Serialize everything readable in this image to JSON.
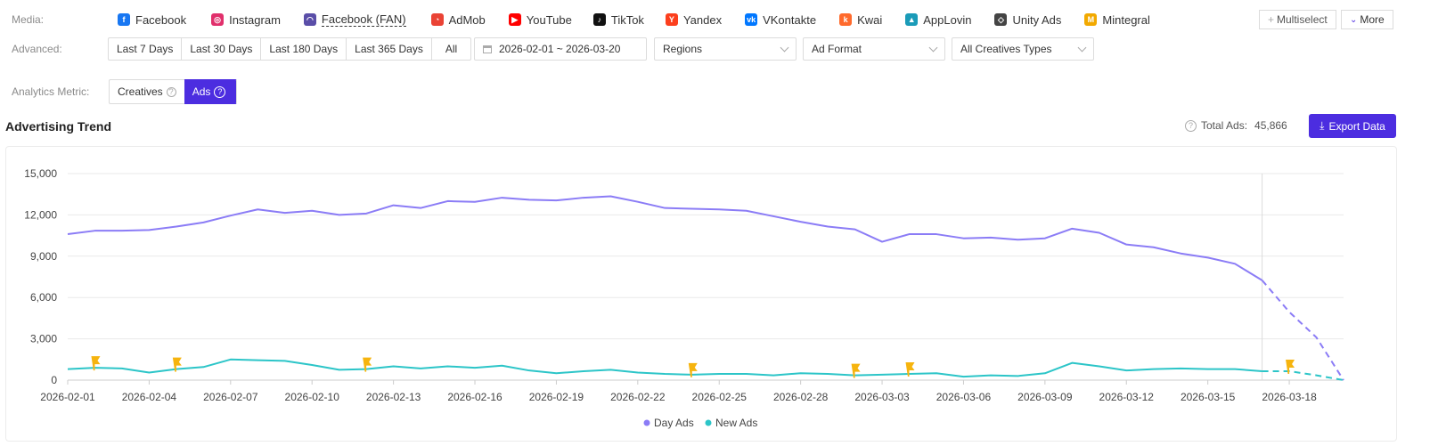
{
  "media": {
    "label": "Media:",
    "items": [
      {
        "name": "facebook",
        "label": "Facebook",
        "color": "#1877f2",
        "glyph": "f"
      },
      {
        "name": "instagram",
        "label": "Instagram",
        "color": "#e1306c",
        "glyph": "◎"
      },
      {
        "name": "facebook-fan",
        "label": "Facebook (FAN)",
        "color": "#5a4ea8",
        "glyph": "◠"
      },
      {
        "name": "admob",
        "label": "AdMob",
        "color": "#ea4335",
        "glyph": "◔"
      },
      {
        "name": "youtube",
        "label": "YouTube",
        "color": "#ff0000",
        "glyph": "▶"
      },
      {
        "name": "tiktok",
        "label": "TikTok",
        "color": "#111111",
        "glyph": "♪"
      },
      {
        "name": "yandex",
        "label": "Yandex",
        "color": "#fc3f1d",
        "glyph": "Y"
      },
      {
        "name": "vkontakte",
        "label": "VKontakte",
        "color": "#0077ff",
        "glyph": "vk"
      },
      {
        "name": "kwai",
        "label": "Kwai",
        "color": "#ff6a2c",
        "glyph": "k"
      },
      {
        "name": "applovin",
        "label": "AppLovin",
        "color": "#1a9bb8",
        "glyph": "▲"
      },
      {
        "name": "unity-ads",
        "label": "Unity Ads",
        "color": "#444444",
        "glyph": "◇"
      },
      {
        "name": "mintegral",
        "label": "Mintegral",
        "color": "#f2a900",
        "glyph": "M"
      }
    ],
    "multiselect_label": "Multiselect",
    "more_label": "More"
  },
  "advanced": {
    "label": "Advanced:",
    "ranges": [
      "Last 7 Days",
      "Last 30 Days",
      "Last 180 Days",
      "Last 365 Days",
      "All"
    ],
    "date_range": "2026-02-01 ~ 2026-03-20",
    "regions": "Regions",
    "ad_format": "Ad Format",
    "creative_types": "All Creatives Types"
  },
  "metric": {
    "label": "Analytics Metric:",
    "options": [
      "Creatives",
      "Ads"
    ],
    "selected": "Ads"
  },
  "trend": {
    "title": "Advertising Trend",
    "total_label": "Total Ads:",
    "total_value": "45,866",
    "export_label": "Export Data"
  },
  "colors": {
    "accent": "#4c2de0",
    "day_ads": "#8b7cf6",
    "new_ads": "#2cc5c8",
    "flag": "#f6b40e"
  },
  "chart_data": {
    "type": "line",
    "x": [
      "2026-02-01",
      "2026-02-02",
      "2026-02-03",
      "2026-02-04",
      "2026-02-05",
      "2026-02-06",
      "2026-02-07",
      "2026-02-08",
      "2026-02-09",
      "2026-02-10",
      "2026-02-11",
      "2026-02-12",
      "2026-02-13",
      "2026-02-14",
      "2026-02-15",
      "2026-02-16",
      "2026-02-17",
      "2026-02-18",
      "2026-02-19",
      "2026-02-20",
      "2026-02-21",
      "2026-02-22",
      "2026-02-23",
      "2026-02-24",
      "2026-02-25",
      "2026-02-26",
      "2026-02-27",
      "2026-02-28",
      "2026-03-01",
      "2026-03-02",
      "2026-03-03",
      "2026-03-04",
      "2026-03-05",
      "2026-03-06",
      "2026-03-07",
      "2026-03-08",
      "2026-03-09",
      "2026-03-10",
      "2026-03-11",
      "2026-03-12",
      "2026-03-13",
      "2026-03-14",
      "2026-03-15",
      "2026-03-16",
      "2026-03-17",
      "2026-03-18",
      "2026-03-19",
      "2026-03-20"
    ],
    "tick_labels": [
      "2026-02-01",
      "2026-02-04",
      "2026-02-07",
      "2026-02-10",
      "2026-02-13",
      "2026-02-16",
      "2026-02-19",
      "2026-02-22",
      "2026-02-25",
      "2026-02-28",
      "2026-03-03",
      "2026-03-06",
      "2026-03-09",
      "2026-03-12",
      "2026-03-15",
      "2026-03-18"
    ],
    "series": [
      {
        "name": "Day Ads",
        "values": [
          10600,
          10850,
          10850,
          10900,
          11150,
          11450,
          11950,
          12400,
          12150,
          12300,
          12000,
          12100,
          12700,
          12500,
          13000,
          12950,
          13250,
          13100,
          13050,
          13250,
          13350,
          12950,
          12500,
          12450,
          12400,
          12300,
          11900,
          11500,
          11150,
          10950,
          10050,
          10600,
          10600,
          10300,
          10350,
          10200,
          10300,
          11000,
          10700,
          9850,
          9650,
          9200,
          8900,
          8450,
          7250,
          4950,
          3100,
          0
        ]
      },
      {
        "name": "New Ads",
        "values": [
          800,
          900,
          850,
          550,
          800,
          950,
          1500,
          1450,
          1400,
          1100,
          750,
          800,
          1000,
          850,
          1000,
          900,
          1050,
          700,
          500,
          650,
          750,
          550,
          450,
          400,
          450,
          450,
          350,
          500,
          450,
          350,
          400,
          450,
          500,
          250,
          350,
          300,
          500,
          1250,
          1000,
          700,
          800,
          850,
          800,
          800,
          650,
          650,
          350,
          0
        ]
      }
    ],
    "projected_from_index": 44,
    "flag_dates": [
      "2026-02-02",
      "2026-02-05",
      "2026-02-12",
      "2026-02-24",
      "2026-03-02",
      "2026-03-04",
      "2026-03-18"
    ],
    "marker_date": "2026-03-17",
    "y_ticks": [
      "0",
      "3,000",
      "6,000",
      "9,000",
      "12,000",
      "15,000"
    ],
    "ylim": [
      0,
      15000
    ],
    "grid": true,
    "legend_position": "bottom-center",
    "xlabel": "",
    "ylabel": ""
  }
}
